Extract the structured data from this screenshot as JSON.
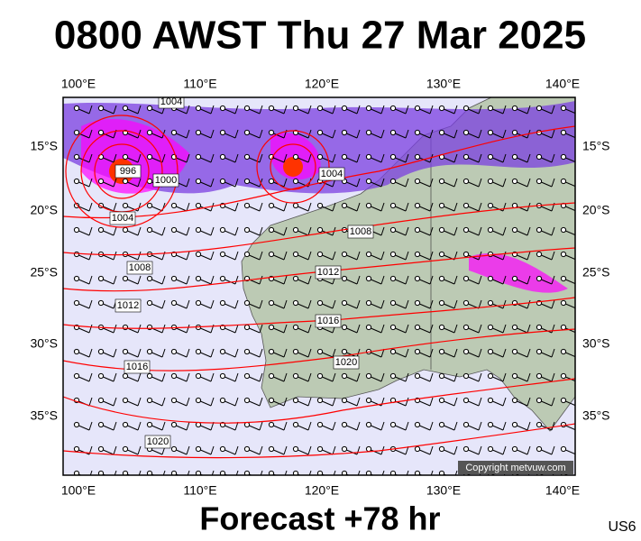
{
  "header": {
    "title": "0800 AWST Thu 27 Mar 2025"
  },
  "axes": {
    "top": [
      "100°E",
      "110°E",
      "120°E",
      "130°E",
      "140°E"
    ],
    "bottom": [
      "100°E",
      "110°E",
      "120°E",
      "130°E",
      "140°E"
    ],
    "left": [
      "15°S",
      "20°S",
      "25°S",
      "30°S",
      "35°S"
    ],
    "right": [
      "15°S",
      "20°S",
      "25°S",
      "30°S",
      "35°S"
    ]
  },
  "isobar_labels": [
    "1004",
    "996",
    "1000",
    "1004",
    "1004",
    "1008",
    "1008",
    "1012",
    "1012",
    "1016",
    "1016",
    "1020",
    "1020"
  ],
  "copyright": "Copyright metvuw.com",
  "footer": {
    "forecast": "Forecast +78 hr",
    "model": "US6"
  }
}
